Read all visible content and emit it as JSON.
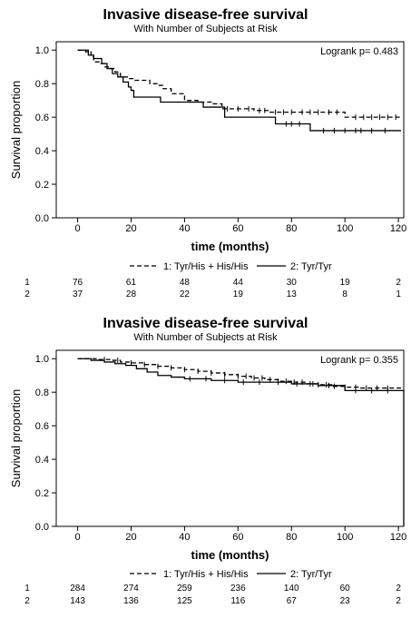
{
  "chart_data": [
    {
      "type": "line",
      "title": "Invasive disease-free survival",
      "subtitle": "With Number of Subjects at Risk",
      "xlabel": "time (months)",
      "ylabel": "Survival proportion",
      "xlim": [
        -8,
        122
      ],
      "ylim": [
        0,
        1.05
      ],
      "xticks": [
        0,
        20,
        40,
        60,
        80,
        100,
        120
      ],
      "yticks": [
        0.0,
        0.2,
        0.4,
        0.6,
        0.8,
        1.0
      ],
      "ytick_labels": [
        "0.0",
        "0.2",
        "0.4",
        "0.6",
        "0.8",
        "1.0"
      ],
      "annotation": "Logrank p= 0.483",
      "legend_position": "bottom",
      "series": [
        {
          "name": "1: Tyr/His + His/His",
          "line_style": "dashed",
          "x": [
            0,
            3,
            5,
            6,
            8,
            10,
            12,
            14,
            16,
            19,
            21,
            24,
            27,
            30,
            32,
            35,
            40,
            45,
            50,
            54,
            60,
            66,
            72,
            80,
            100,
            121
          ],
          "y": [
            1.0,
            0.99,
            0.96,
            0.93,
            0.92,
            0.9,
            0.89,
            0.87,
            0.84,
            0.83,
            0.82,
            0.82,
            0.8,
            0.79,
            0.77,
            0.74,
            0.7,
            0.69,
            0.68,
            0.65,
            0.65,
            0.64,
            0.63,
            0.63,
            0.6,
            0.6
          ],
          "censor_x": [
            56,
            60,
            64,
            68,
            70,
            74,
            77,
            80,
            84,
            87,
            90,
            94,
            97,
            104,
            107,
            110,
            113,
            116,
            119
          ],
          "at_risk": [
            76,
            61,
            48,
            44,
            30,
            19,
            2
          ]
        },
        {
          "name": "2: Tyr/Tyr",
          "line_style": "solid",
          "x": [
            0,
            4,
            6,
            9,
            11,
            13,
            15,
            17,
            19,
            20,
            21,
            25,
            27,
            31,
            38,
            47,
            50,
            55,
            66,
            74,
            87,
            121
          ],
          "y": [
            1.0,
            0.97,
            0.95,
            0.92,
            0.89,
            0.86,
            0.84,
            0.81,
            0.78,
            0.76,
            0.72,
            0.72,
            0.72,
            0.69,
            0.69,
            0.66,
            0.66,
            0.6,
            0.6,
            0.56,
            0.52,
            0.52
          ],
          "censor_x": [
            78,
            80,
            83,
            92,
            96,
            100,
            104,
            106,
            110,
            115
          ],
          "at_risk": [
            37,
            28,
            22,
            19,
            13,
            8,
            1
          ]
        }
      ],
      "at_risk_times": [
        0,
        20,
        40,
        60,
        80,
        100,
        120
      ],
      "at_risk_rows": [
        "1",
        "2"
      ]
    },
    {
      "type": "line",
      "title": "Invasive disease-free survival",
      "subtitle": "With Number of Subjects at Risk",
      "xlabel": "time (months)",
      "ylabel": "Survival proportion",
      "xlim": [
        -8,
        122
      ],
      "ylim": [
        0,
        1.05
      ],
      "xticks": [
        0,
        20,
        40,
        60,
        80,
        100,
        120
      ],
      "yticks": [
        0.0,
        0.2,
        0.4,
        0.6,
        0.8,
        1.0
      ],
      "ytick_labels": [
        "0.0",
        "0.2",
        "0.4",
        "0.6",
        "0.8",
        "1.0"
      ],
      "annotation": "Logrank p= 0.355",
      "legend_position": "bottom",
      "series": [
        {
          "name": "1: Tyr/His + His/His",
          "line_style": "dashed",
          "x": [
            0,
            8,
            12,
            16,
            20,
            25,
            30,
            35,
            40,
            45,
            50,
            55,
            60,
            65,
            70,
            75,
            80,
            85,
            90,
            95,
            100,
            105,
            110,
            115,
            121
          ],
          "y": [
            1.0,
            0.995,
            0.99,
            0.98,
            0.975,
            0.965,
            0.955,
            0.945,
            0.935,
            0.925,
            0.915,
            0.905,
            0.895,
            0.885,
            0.875,
            0.865,
            0.86,
            0.85,
            0.845,
            0.835,
            0.83,
            0.825,
            0.825,
            0.825,
            0.825
          ],
          "censor_x": [
            10,
            15,
            20,
            25,
            30,
            35,
            40,
            45,
            50,
            55,
            60,
            63,
            66,
            69,
            72,
            75,
            78,
            81,
            84,
            87,
            90,
            93,
            96,
            100,
            104,
            108,
            112,
            116
          ],
          "at_risk": [
            284,
            274,
            259,
            236,
            140,
            60,
            2
          ]
        },
        {
          "name": "2: Tyr/Tyr",
          "line_style": "solid",
          "x": [
            0,
            5,
            10,
            14,
            18,
            22,
            26,
            30,
            35,
            40,
            50,
            60,
            70,
            80,
            90,
            96,
            100,
            122,
            122
          ],
          "y": [
            1.0,
            0.99,
            0.98,
            0.97,
            0.96,
            0.94,
            0.92,
            0.9,
            0.89,
            0.88,
            0.87,
            0.86,
            0.86,
            0.85,
            0.84,
            0.84,
            0.81,
            0.81,
            0.0
          ],
          "censor_x": [
            42,
            48,
            55,
            62,
            68,
            75,
            82,
            88,
            94,
            104,
            110,
            116
          ],
          "at_risk": [
            143,
            136,
            125,
            116,
            67,
            23,
            2
          ]
        }
      ],
      "at_risk_times": [
        0,
        20,
        40,
        60,
        80,
        100,
        120
      ],
      "at_risk_rows": [
        "1",
        "2"
      ]
    }
  ]
}
